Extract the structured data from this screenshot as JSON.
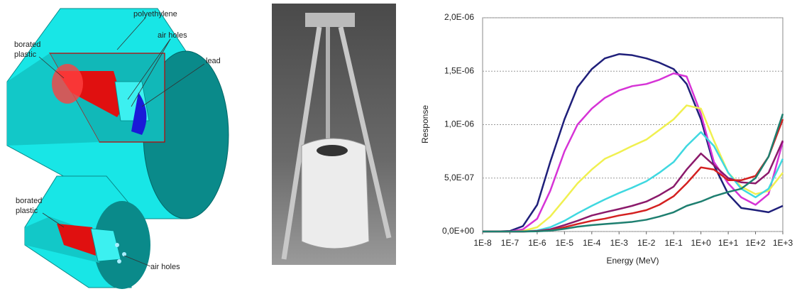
{
  "diagram": {
    "top_labels": [
      "polyethylene",
      "air holes",
      "lead",
      "borated",
      "plastic"
    ],
    "bottom_labels": [
      "borated",
      "plastic",
      "air holes"
    ]
  },
  "chart_data": {
    "type": "line",
    "x_label": "Energy (MeV)",
    "y_label": "Response",
    "x": [
      1e-08,
      3e-08,
      1e-07,
      3e-07,
      1e-06,
      3e-06,
      1e-05,
      3e-05,
      0.0001,
      0.0003,
      0.001,
      0.003,
      0.01,
      0.03,
      0.1,
      0.3,
      1,
      3,
      10,
      30,
      100,
      300,
      1000
    ],
    "xscale": "log",
    "xlim": [
      1e-08,
      1000
    ],
    "xticks": [
      {
        "value": 1e-08,
        "label": "1E-8"
      },
      {
        "value": 1e-07,
        "label": "1E-7"
      },
      {
        "value": 1e-06,
        "label": "1E-6"
      },
      {
        "value": 1e-05,
        "label": "1E-5"
      },
      {
        "value": 0.0001,
        "label": "1E-4"
      },
      {
        "value": 0.001,
        "label": "1E-3"
      },
      {
        "value": 0.01,
        "label": "1E-2"
      },
      {
        "value": 0.1,
        "label": "1E-1"
      },
      {
        "value": 1,
        "label": "1E+0"
      },
      {
        "value": 10,
        "label": "1E+1"
      },
      {
        "value": 100,
        "label": "1E+2"
      },
      {
        "value": 1000,
        "label": "1E+3"
      }
    ],
    "ylim": [
      0,
      2e-06
    ],
    "yticks": [
      {
        "value": 0,
        "label": "0,0E+00"
      },
      {
        "value": 5e-07,
        "label": "5,0E-07"
      },
      {
        "value": 1e-06,
        "label": "1,0E-06"
      },
      {
        "value": 1.5e-06,
        "label": "1,5E-06"
      },
      {
        "value": 2e-06,
        "label": "2,0E-06"
      }
    ],
    "grid": true,
    "series": [
      {
        "color": "#1f1f7a",
        "values": [
          0,
          0,
          5e-09,
          5e-08,
          2.5e-07,
          6.5e-07,
          1.05e-06,
          1.35e-06,
          1.52e-06,
          1.62e-06,
          1.66e-06,
          1.65e-06,
          1.62e-06,
          1.58e-06,
          1.52e-06,
          1.38e-06,
          1.05e-06,
          6.2e-07,
          3.5e-07,
          2.2e-07,
          2e-07,
          1.8e-07,
          2.4e-07
        ]
      },
      {
        "color": "#d633d6",
        "values": [
          0,
          0,
          0,
          2e-08,
          1.2e-07,
          3.8e-07,
          7.5e-07,
          1e-06,
          1.15e-06,
          1.25e-06,
          1.32e-06,
          1.36e-06,
          1.38e-06,
          1.42e-06,
          1.48e-06,
          1.45e-06,
          1.1e-06,
          6.5e-07,
          4.5e-07,
          3.2e-07,
          2.5e-07,
          3.5e-07,
          8.4e-07
        ]
      },
      {
        "color": "#f0f050",
        "values": [
          0,
          0,
          0,
          5e-09,
          4e-08,
          1.4e-07,
          3e-07,
          4.5e-07,
          5.8e-07,
          6.8e-07,
          7.4e-07,
          8e-07,
          8.6e-07,
          9.5e-07,
          1.05e-06,
          1.18e-06,
          1.15e-06,
          8.5e-07,
          5.5e-07,
          4.2e-07,
          3.5e-07,
          3.8e-07,
          5.5e-07
        ]
      },
      {
        "color": "#3fd8e0",
        "values": [
          0,
          0,
          0,
          0,
          1e-08,
          4e-08,
          1e-07,
          1.7e-07,
          2.4e-07,
          3e-07,
          3.6e-07,
          4.1e-07,
          4.7e-07,
          5.5e-07,
          6.5e-07,
          8e-07,
          9.3e-07,
          8e-07,
          5.5e-07,
          4e-07,
          3.2e-07,
          4e-07,
          6.8e-07
        ]
      },
      {
        "color": "#8b1a6b",
        "values": [
          0,
          0,
          0,
          0,
          5e-09,
          2e-08,
          6e-08,
          1e-07,
          1.5e-07,
          1.8e-07,
          2.1e-07,
          2.4e-07,
          2.8e-07,
          3.4e-07,
          4.2e-07,
          5.8e-07,
          7.3e-07,
          6.2e-07,
          5e-07,
          4.6e-07,
          4.5e-07,
          5.5e-07,
          8.5e-07
        ]
      },
      {
        "color": "#d42020",
        "values": [
          0,
          0,
          0,
          0,
          3e-09,
          1e-08,
          4e-08,
          7e-08,
          1e-07,
          1.2e-07,
          1.5e-07,
          1.7e-07,
          2e-07,
          2.5e-07,
          3.3e-07,
          4.5e-07,
          6e-07,
          5.8e-07,
          4.8e-07,
          4.8e-07,
          5.2e-07,
          7e-07,
          1.05e-06
        ]
      },
      {
        "color": "#1e7f70",
        "values": [
          0,
          0,
          0,
          0,
          2e-09,
          8e-09,
          2.5e-08,
          4.5e-08,
          6e-08,
          7e-08,
          8e-08,
          9e-08,
          1.1e-07,
          1.4e-07,
          1.8e-07,
          2.4e-07,
          2.8e-07,
          3.3e-07,
          3.7e-07,
          4e-07,
          5e-07,
          7e-07,
          1.1e-06
        ]
      }
    ]
  }
}
